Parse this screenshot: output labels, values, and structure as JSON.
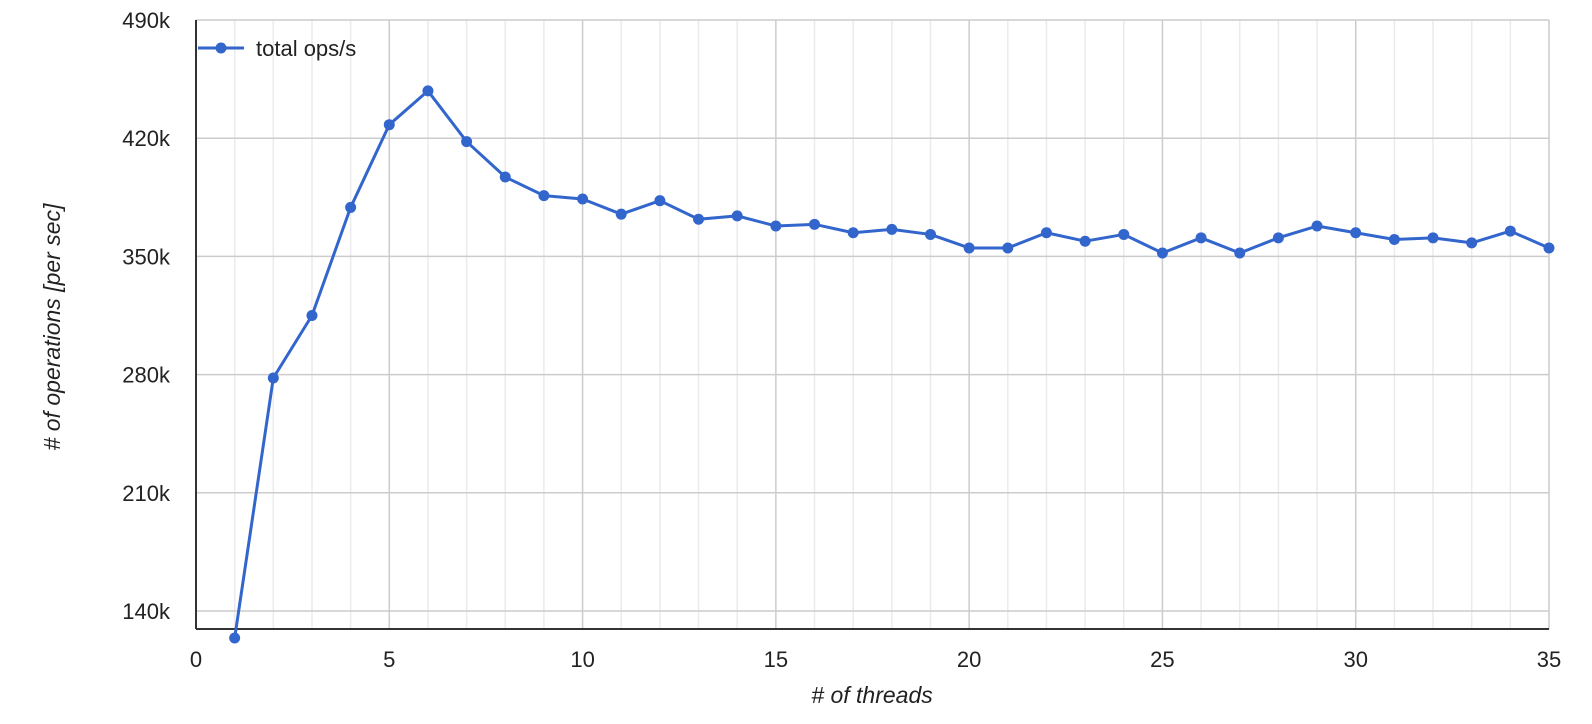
{
  "colors": {
    "series": "#3366cc",
    "grid_major": "#cccccc",
    "grid_minor": "#ebebeb",
    "axis": "#333333",
    "text": "#222222"
  },
  "chart_data": {
    "type": "line",
    "title": "",
    "xlabel": "# of threads",
    "ylabel": "# of operations [per sec]",
    "xlim": [
      0,
      35
    ],
    "ylim": [
      140000,
      490000
    ],
    "x_ticks": [
      0,
      5,
      10,
      15,
      20,
      25,
      30,
      35
    ],
    "x_tick_labels": [
      "0",
      "5",
      "10",
      "15",
      "20",
      "25",
      "30",
      "35"
    ],
    "y_ticks": [
      140000,
      210000,
      280000,
      350000,
      420000,
      490000
    ],
    "y_tick_labels": [
      "140k",
      "210k",
      "280k",
      "350k",
      "420k",
      "490k"
    ],
    "grid": true,
    "legend_position": "top-left",
    "series": [
      {
        "name": "total ops/s",
        "x": [
          1,
          2,
          3,
          4,
          5,
          6,
          7,
          8,
          9,
          10,
          11,
          12,
          13,
          14,
          15,
          16,
          17,
          18,
          19,
          20,
          21,
          22,
          23,
          24,
          25,
          26,
          27,
          28,
          29,
          30,
          31,
          32,
          33,
          34,
          35
        ],
        "values": [
          124000,
          278000,
          315000,
          379000,
          428000,
          448000,
          418000,
          397000,
          386000,
          384000,
          375000,
          383000,
          372000,
          374000,
          368000,
          369000,
          364000,
          366000,
          363000,
          355000,
          355000,
          364000,
          359000,
          363000,
          352000,
          361000,
          352000,
          361000,
          368000,
          364000,
          360000,
          361000,
          358000,
          365000,
          355000
        ]
      }
    ]
  }
}
